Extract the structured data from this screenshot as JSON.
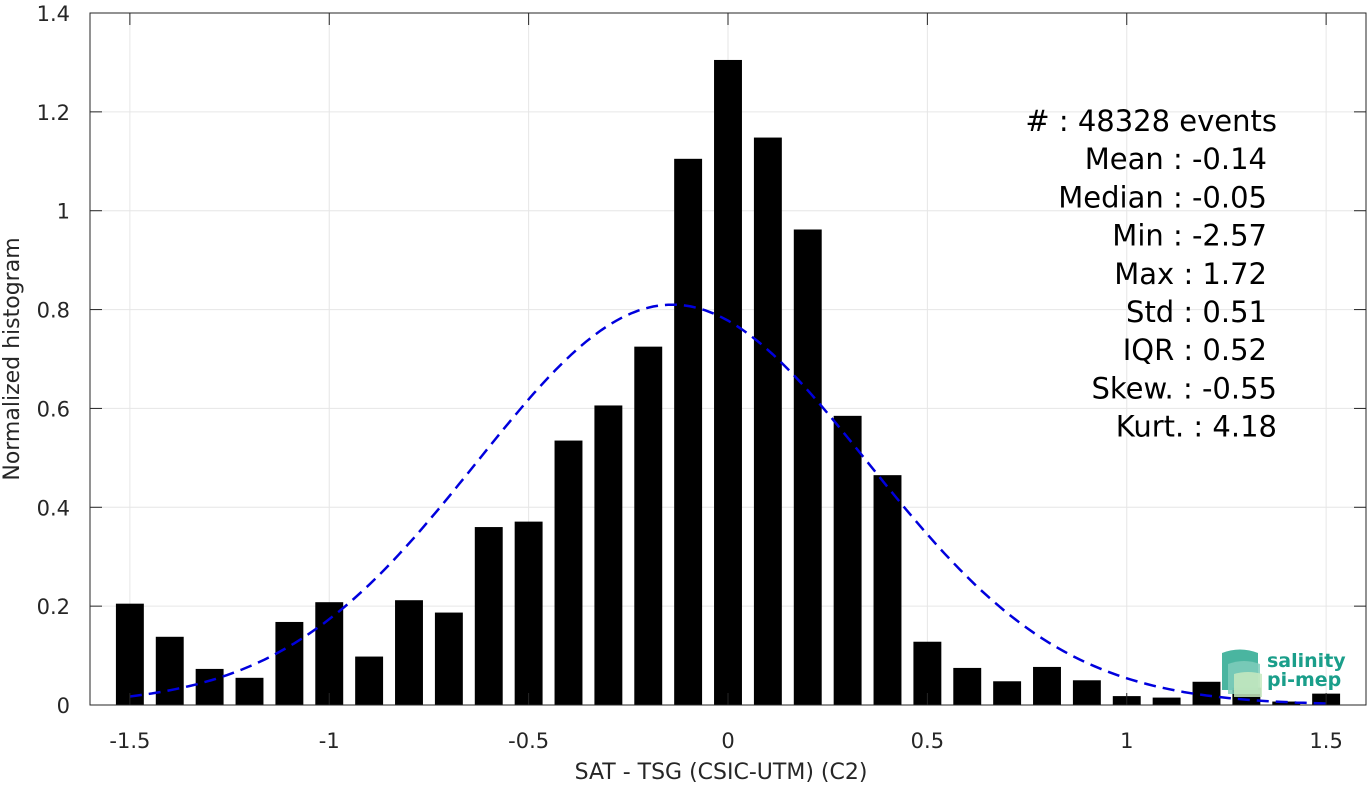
{
  "chart_data": {
    "type": "bar",
    "xlabel": "SAT - TSG (CSIC-UTM) (C2)",
    "ylabel": "Normalized histogram",
    "xlim": [
      -1.6,
      1.6
    ],
    "ylim": [
      0,
      1.4
    ],
    "xticks": [
      -1.5,
      -1,
      -0.5,
      0,
      0.5,
      1,
      1.5
    ],
    "xtick_labels": [
      "-1.5",
      "-1",
      "-0.5",
      "0",
      "0.5",
      "1",
      "1.5"
    ],
    "yticks": [
      0,
      0.2,
      0.4,
      0.6,
      0.8,
      1,
      1.2,
      1.4
    ],
    "ytick_labels": [
      "0",
      "0.2",
      "0.4",
      "0.6",
      "0.8",
      "1",
      "1.2",
      "1.4"
    ],
    "grid": true,
    "bin_width": 0.1,
    "bar_color": "#000000",
    "x": [
      -1.5,
      -1.4,
      -1.3,
      -1.2,
      -1.1,
      -1.0,
      -0.9,
      -0.8,
      -0.7,
      -0.6,
      -0.5,
      -0.4,
      -0.3,
      -0.2,
      -0.1,
      0.0,
      0.1,
      0.2,
      0.3,
      0.4,
      0.5,
      0.6,
      0.7,
      0.8,
      0.9,
      1.0,
      1.1,
      1.2,
      1.3,
      1.4,
      1.5
    ],
    "values": [
      0.205,
      0.138,
      0.073,
      0.055,
      0.168,
      0.208,
      0.098,
      0.212,
      0.187,
      0.36,
      0.371,
      0.535,
      0.606,
      0.725,
      1.105,
      1.305,
      1.148,
      0.962,
      0.585,
      0.465,
      0.128,
      0.075,
      0.048,
      0.077,
      0.05,
      0.018,
      0.015,
      0.047,
      0.035,
      0.007,
      0.023
    ],
    "fit_curve": {
      "style": "dashed",
      "color": "#0000dd",
      "mean": -0.14,
      "std": 0.49,
      "peak": 0.81,
      "x_range": [
        -1.5,
        1.5
      ]
    },
    "stats": [
      "#  : 48328 events",
      "Mean : -0.14",
      "Median : -0.05",
      "Min : -2.57",
      "Max : 1.72",
      "Std : 0.51",
      "IQR : 0.52",
      "Skew. : -0.55",
      "Kurt. : 4.18"
    ],
    "logo": {
      "line1": "salinity",
      "line2": "pi-mep",
      "color": "#1a9e8a"
    }
  }
}
